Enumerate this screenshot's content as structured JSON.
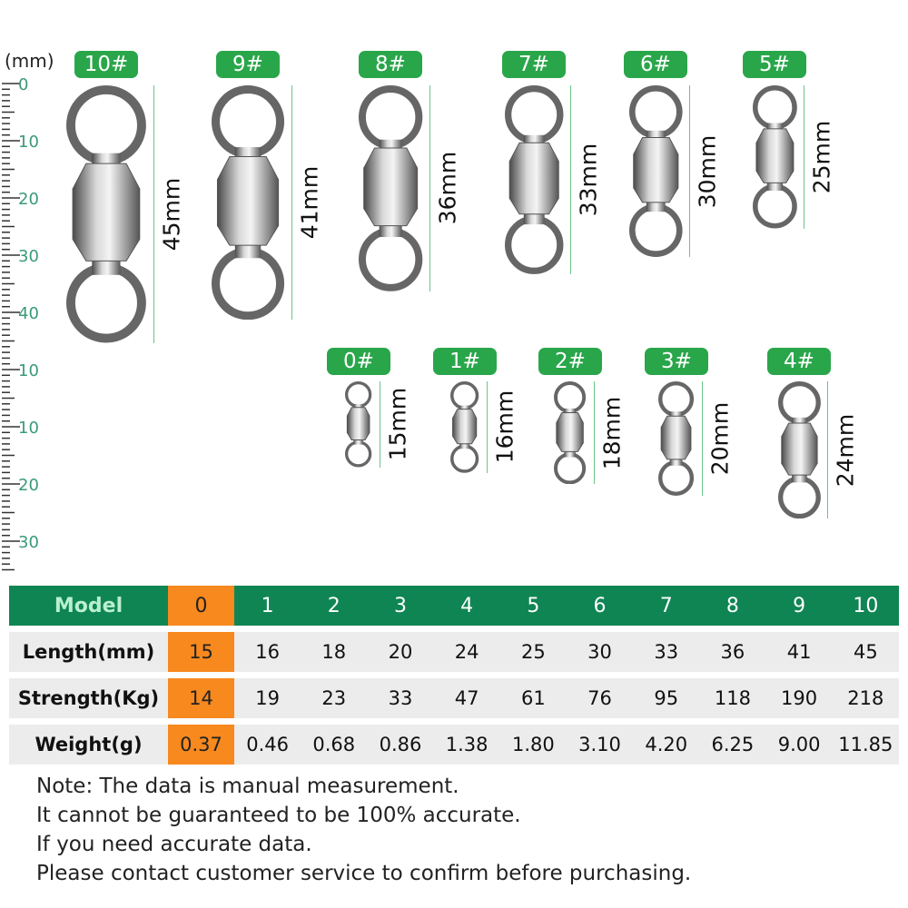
{
  "unit_label": "(mm)",
  "ruler_labels": [
    "0",
    "10",
    "20",
    "30",
    "40",
    "10",
    "10",
    "20",
    "30"
  ],
  "accent_colors": {
    "tag_green": "#2aa64a",
    "header_green": "#0f8553",
    "highlight_orange": "#f7891f"
  },
  "swivels_top": [
    {
      "tag": "10#",
      "length_label": "45mm",
      "length_mm": 45
    },
    {
      "tag": "9#",
      "length_label": "41mm",
      "length_mm": 41
    },
    {
      "tag": "8#",
      "length_label": "36mm",
      "length_mm": 36
    },
    {
      "tag": "7#",
      "length_label": "33mm",
      "length_mm": 33
    },
    {
      "tag": "6#",
      "length_label": "30mm",
      "length_mm": 30
    },
    {
      "tag": "5#",
      "length_label": "25mm",
      "length_mm": 25
    }
  ],
  "swivels_bottom": [
    {
      "tag": "0#",
      "length_label": "15mm",
      "length_mm": 15
    },
    {
      "tag": "1#",
      "length_label": "16mm",
      "length_mm": 16
    },
    {
      "tag": "2#",
      "length_label": "18mm",
      "length_mm": 18
    },
    {
      "tag": "3#",
      "length_label": "20mm",
      "length_mm": 20
    },
    {
      "tag": "4#",
      "length_label": "24mm",
      "length_mm": 24
    }
  ],
  "table": {
    "rows": [
      {
        "label": "Model",
        "values": [
          "0",
          "1",
          "2",
          "3",
          "4",
          "5",
          "6",
          "7",
          "8",
          "9",
          "10"
        ]
      },
      {
        "label": "Length(mm)",
        "values": [
          "15",
          "16",
          "18",
          "20",
          "24",
          "25",
          "30",
          "33",
          "36",
          "41",
          "45"
        ]
      },
      {
        "label": "Strength(Kg)",
        "values": [
          "14",
          "19",
          "23",
          "33",
          "47",
          "61",
          "76",
          "95",
          "118",
          "190",
          "218"
        ]
      },
      {
        "label": "Weight(g)",
        "values": [
          "0.37",
          "0.46",
          "0.68",
          "0.86",
          "1.38",
          "1.80",
          "3.10",
          "4.20",
          "6.25",
          "9.00",
          "11.85"
        ]
      }
    ]
  },
  "notes": [
    "Note: The data is manual measurement.",
    "It cannot be guaranteed to be 100% accurate.",
    "If you need accurate data.",
    "Please contact customer service to confirm before purchasing."
  ]
}
